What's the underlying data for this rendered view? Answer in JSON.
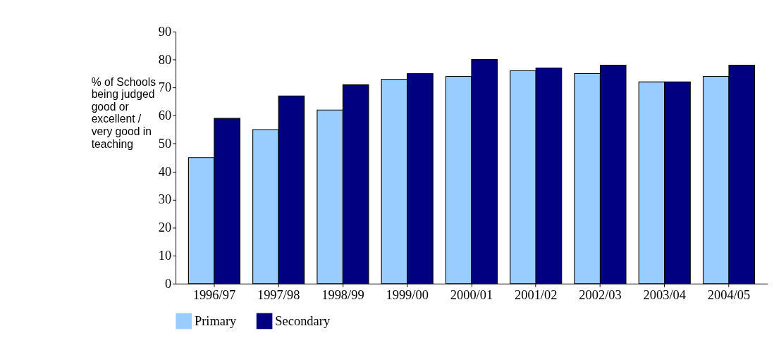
{
  "chart_data": {
    "type": "bar",
    "ylabel": "% of Schools being judged good or excellent / very good in teaching",
    "categories": [
      "1996/97",
      "1997/98",
      "1998/99",
      "1999/00",
      "2000/01",
      "2001/02",
      "2002/03",
      "2003/04",
      "2004/05"
    ],
    "series": [
      {
        "name": "Primary",
        "color": "#99ccff",
        "values": [
          45,
          55,
          62,
          73,
          74,
          76,
          75,
          72,
          74
        ]
      },
      {
        "name": "Secondary",
        "color": "#000080",
        "values": [
          59,
          67,
          71,
          75,
          80,
          77,
          78,
          72,
          78
        ]
      }
    ],
    "ylim": [
      0,
      90
    ],
    "yticks": [
      0,
      10,
      20,
      30,
      40,
      50,
      60,
      70,
      80,
      90
    ],
    "grid": false,
    "legend": "bottom"
  }
}
